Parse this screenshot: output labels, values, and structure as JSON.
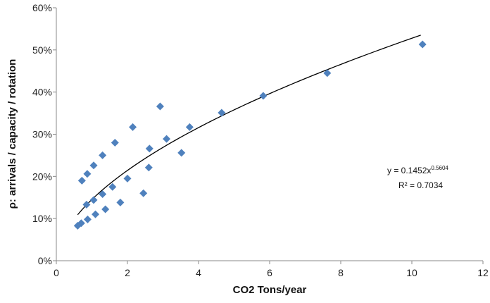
{
  "chart_data": {
    "type": "scatter",
    "xlabel": "CO2 Tons/year",
    "ylabel": "ρ: arrivals / capacity / rotation",
    "xlim": [
      0,
      12
    ],
    "ylim": [
      0,
      0.6
    ],
    "x_ticks": [
      0,
      2,
      4,
      6,
      8,
      10,
      12
    ],
    "y_ticks": [
      0,
      0.1,
      0.2,
      0.3,
      0.4,
      0.5,
      0.6
    ],
    "x_tick_labels": [
      "0",
      "2",
      "4",
      "6",
      "8",
      "10",
      "12"
    ],
    "y_tick_labels": [
      "0%",
      "10%",
      "20%",
      "30%",
      "40%",
      "50%",
      "60%"
    ],
    "grid": false,
    "marker_color": "#4F81BD",
    "trendline_color": "#000000",
    "series": [
      {
        "points": [
          {
            "x": 0.6,
            "y": 0.083
          },
          {
            "x": 0.7,
            "y": 0.089
          },
          {
            "x": 0.72,
            "y": 0.19
          },
          {
            "x": 0.85,
            "y": 0.133
          },
          {
            "x": 0.87,
            "y": 0.206
          },
          {
            "x": 0.88,
            "y": 0.098
          },
          {
            "x": 1.05,
            "y": 0.144
          },
          {
            "x": 1.05,
            "y": 0.226
          },
          {
            "x": 1.1,
            "y": 0.11
          },
          {
            "x": 1.3,
            "y": 0.158
          },
          {
            "x": 1.3,
            "y": 0.25
          },
          {
            "x": 1.38,
            "y": 0.122
          },
          {
            "x": 1.58,
            "y": 0.175
          },
          {
            "x": 1.65,
            "y": 0.28
          },
          {
            "x": 1.8,
            "y": 0.138
          },
          {
            "x": 2.0,
            "y": 0.195
          },
          {
            "x": 2.15,
            "y": 0.317
          },
          {
            "x": 2.45,
            "y": 0.16
          },
          {
            "x": 2.6,
            "y": 0.221
          },
          {
            "x": 2.62,
            "y": 0.266
          },
          {
            "x": 2.92,
            "y": 0.366
          },
          {
            "x": 3.1,
            "y": 0.289
          },
          {
            "x": 3.52,
            "y": 0.256
          },
          {
            "x": 3.75,
            "y": 0.317
          },
          {
            "x": 4.65,
            "y": 0.351
          },
          {
            "x": 5.82,
            "y": 0.391
          },
          {
            "x": 7.62,
            "y": 0.445
          },
          {
            "x": 10.3,
            "y": 0.513
          }
        ]
      }
    ],
    "trendline": {
      "type": "power",
      "a": 0.1452,
      "b": 0.5604,
      "x_range": [
        0.6,
        10.25
      ],
      "equation_base": "y = 0.1452x",
      "equation_exponent": "0.5604",
      "r_squared_label": "R² = 0.7034"
    }
  }
}
